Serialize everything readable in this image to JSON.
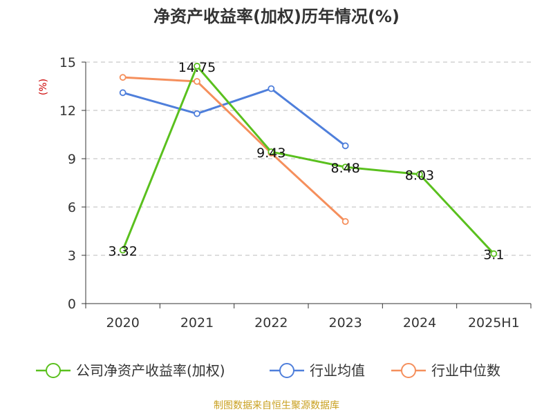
{
  "chart_data": {
    "type": "line",
    "title": "净资产收益率(加权)历年情况(%)",
    "unit_label": "(%)",
    "categories": [
      "2020",
      "2021",
      "2022",
      "2023",
      "2024",
      "2025H1"
    ],
    "ylim": [
      0,
      15
    ],
    "yticks": [
      "0",
      "3",
      "6",
      "9",
      "12",
      "15"
    ],
    "grid": true,
    "legend_position": "bottom",
    "series": [
      {
        "name": "公司净资产收益率(加权)",
        "color": "#5ac01e",
        "values": [
          3.32,
          14.75,
          9.43,
          8.48,
          8.03,
          3.1
        ],
        "labels": [
          "3.32",
          "14.75",
          "9.43",
          "8.48",
          "8.03",
          "3.1"
        ]
      },
      {
        "name": "行业均值",
        "color": "#4f7fdb",
        "values": [
          13.1,
          11.8,
          13.35,
          9.8,
          null,
          null
        ]
      },
      {
        "name": "行业中位数",
        "color": "#f58f5c",
        "values": [
          14.05,
          13.8,
          9.35,
          5.1,
          null,
          null
        ]
      }
    ]
  },
  "source_note": "制图数据来自恒生聚源数据库",
  "colors": {
    "source": "#c9a020",
    "axis": "#333333",
    "grid": "#bbbbbb",
    "unit": "#cc0000"
  }
}
